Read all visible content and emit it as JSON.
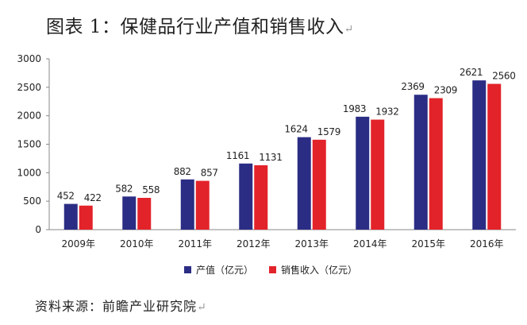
{
  "title": "图表 1：保健品行业产值和销售收入",
  "source": "资料来源：前瞻产业研究院",
  "chart_data": {
    "type": "bar",
    "categories": [
      "2009年",
      "2010年",
      "2011年",
      "2012年",
      "2013年",
      "2014年",
      "2015年",
      "2016年"
    ],
    "series": [
      {
        "name": "产值（亿元）",
        "color": "#2b2d84",
        "values": [
          452,
          582,
          882,
          1161,
          1624,
          1983,
          2369,
          2621
        ]
      },
      {
        "name": "销售收入（亿元）",
        "color": "#e3232a",
        "values": [
          422,
          558,
          857,
          1131,
          1579,
          1932,
          2309,
          2560
        ]
      }
    ],
    "ylim": [
      0,
      3000
    ],
    "yticks": [
      0,
      500,
      1000,
      1500,
      2000,
      2500,
      3000
    ],
    "grid": false,
    "legend_position": "bottom",
    "data_labels": true
  }
}
